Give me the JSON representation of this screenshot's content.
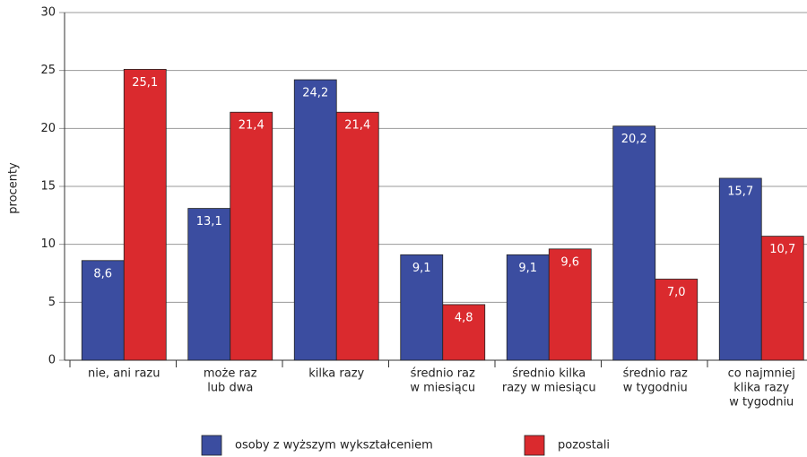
{
  "chart_data": {
    "type": "bar",
    "ylabel": "procenty",
    "categories": [
      [
        "nie, ani razu"
      ],
      [
        "może raz",
        "lub dwa"
      ],
      [
        "kilka razy"
      ],
      [
        "średnio raz",
        "w miesiącu"
      ],
      [
        "średnio kilka",
        "razy w miesiącu"
      ],
      [
        "średnio raz",
        "w tygodniu"
      ],
      [
        "co najmniej",
        "klika razy",
        "w tygodniu"
      ]
    ],
    "series": [
      {
        "name": "osoby z wyższym wykształceniem",
        "color": "#3b4da0",
        "values": [
          8.6,
          13.1,
          24.2,
          9.1,
          9.1,
          20.2,
          15.7
        ],
        "value_labels": [
          "8,6",
          "13,1",
          "24,2",
          "9,1",
          "9,1",
          "20,2",
          "15,7"
        ]
      },
      {
        "name": "pozostali",
        "color": "#da2a2e",
        "values": [
          25.1,
          21.4,
          21.4,
          4.8,
          9.6,
          7.0,
          10.7
        ],
        "value_labels": [
          "25,1",
          "21,4",
          "21,4",
          "4,8",
          "9,6",
          "7,0",
          "10,7"
        ]
      }
    ],
    "ylim": [
      0,
      30
    ],
    "yticks": [
      0,
      5,
      10,
      15,
      20,
      25,
      30
    ],
    "grid": true
  }
}
